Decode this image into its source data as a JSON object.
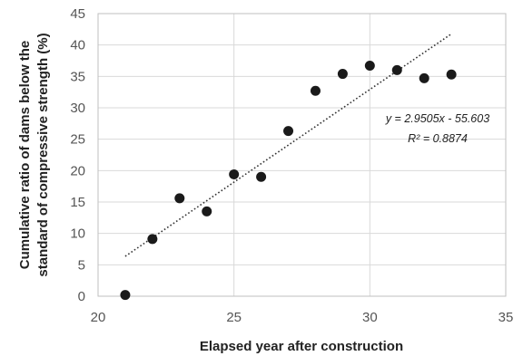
{
  "chart_data": {
    "type": "scatter",
    "xlabel": "Elapsed year after construction",
    "ylabel": [
      "Cumulative ratio of  dams below the",
      "standard of compressive strength  (%)"
    ],
    "xlim": [
      20,
      35
    ],
    "ylim": [
      0,
      45
    ],
    "xticks": [
      20,
      25,
      30,
      35
    ],
    "yticks": [
      0,
      5,
      10,
      15,
      20,
      25,
      30,
      35,
      40,
      45
    ],
    "grid": "both",
    "series": [
      {
        "points": [
          {
            "x": 21,
            "y": 0.2
          },
          {
            "x": 22,
            "y": 9.1
          },
          {
            "x": 23,
            "y": 15.6
          },
          {
            "x": 24,
            "y": 13.5
          },
          {
            "x": 25,
            "y": 19.4
          },
          {
            "x": 26,
            "y": 19.0
          },
          {
            "x": 27,
            "y": 26.3
          },
          {
            "x": 28,
            "y": 32.7
          },
          {
            "x": 29,
            "y": 35.4
          },
          {
            "x": 30,
            "y": 36.7
          },
          {
            "x": 31,
            "y": 36.0
          },
          {
            "x": 32,
            "y": 34.7
          },
          {
            "x": 33,
            "y": 35.3
          }
        ],
        "color": "#1a1a1a"
      }
    ],
    "trendline": {
      "type": "linear",
      "slope": 2.9505,
      "intercept": -55.603,
      "x_range": [
        21,
        33
      ],
      "style": "dotted",
      "equation_label": "y = 2.9505x - 55.603",
      "r2_label": "R² = 0.8874"
    },
    "colors": {
      "grid": "#d9d9d9",
      "frame": "#bfbfbf",
      "marker": "#1a1a1a"
    }
  }
}
